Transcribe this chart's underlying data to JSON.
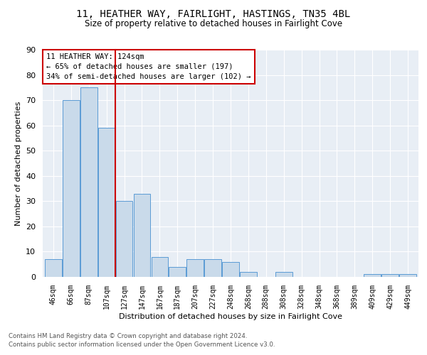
{
  "title": "11, HEATHER WAY, FAIRLIGHT, HASTINGS, TN35 4BL",
  "subtitle": "Size of property relative to detached houses in Fairlight Cove",
  "xlabel": "Distribution of detached houses by size in Fairlight Cove",
  "ylabel": "Number of detached properties",
  "footnote1": "Contains HM Land Registry data © Crown copyright and database right 2024.",
  "footnote2": "Contains public sector information licensed under the Open Government Licence v3.0.",
  "annotation_title": "11 HEATHER WAY: 124sqm",
  "annotation_line2": "← 65% of detached houses are smaller (197)",
  "annotation_line3": "34% of semi-detached houses are larger (102) →",
  "bar_color": "#c9daea",
  "bar_edge_color": "#5b9bd5",
  "vline_color": "#cc0000",
  "bg_color": "#e8eef5",
  "grid_color": "#ffffff",
  "categories": [
    "46sqm",
    "66sqm",
    "87sqm",
    "107sqm",
    "127sqm",
    "147sqm",
    "167sqm",
    "187sqm",
    "207sqm",
    "227sqm",
    "248sqm",
    "268sqm",
    "288sqm",
    "308sqm",
    "328sqm",
    "348sqm",
    "368sqm",
    "389sqm",
    "409sqm",
    "429sqm",
    "449sqm"
  ],
  "values": [
    7,
    70,
    75,
    59,
    30,
    33,
    8,
    4,
    7,
    7,
    6,
    2,
    0,
    2,
    0,
    0,
    0,
    0,
    1,
    1,
    1
  ],
  "ylim": [
    0,
    90
  ],
  "yticks": [
    0,
    10,
    20,
    30,
    40,
    50,
    60,
    70,
    80,
    90
  ],
  "vline_x": 3.5
}
